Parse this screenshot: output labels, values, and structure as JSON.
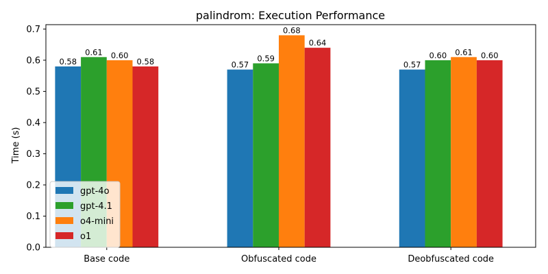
{
  "chart_data": {
    "type": "bar",
    "title": "palindrom: Execution Performance",
    "xlabel": "",
    "ylabel": "Time (s)",
    "categories": [
      "Base code",
      "Obfuscated code",
      "Deobfuscated code"
    ],
    "series": [
      {
        "name": "gpt-4o",
        "color": "#1f77b4",
        "values": [
          0.58,
          0.57,
          0.57
        ],
        "labels": [
          "0.58",
          "0.57",
          "0.57"
        ]
      },
      {
        "name": "gpt-4.1",
        "color": "#2ca02c",
        "values": [
          0.61,
          0.59,
          0.6
        ],
        "labels": [
          "0.61",
          "0.59",
          "0.60"
        ]
      },
      {
        "name": "o4-mini",
        "color": "#ff7f0e",
        "values": [
          0.6,
          0.68,
          0.61
        ],
        "labels": [
          "0.60",
          "0.68",
          "0.61"
        ]
      },
      {
        "name": "o1",
        "color": "#d62728",
        "values": [
          0.58,
          0.64,
          0.6
        ],
        "labels": [
          "0.58",
          "0.64",
          "0.60"
        ]
      }
    ],
    "yticks": [
      "0.0",
      "0.1",
      "0.2",
      "0.3",
      "0.4",
      "0.5",
      "0.6",
      "0.7"
    ],
    "ylim": [
      0,
      0.714
    ],
    "grid": false,
    "legend_position": "lower-left"
  }
}
